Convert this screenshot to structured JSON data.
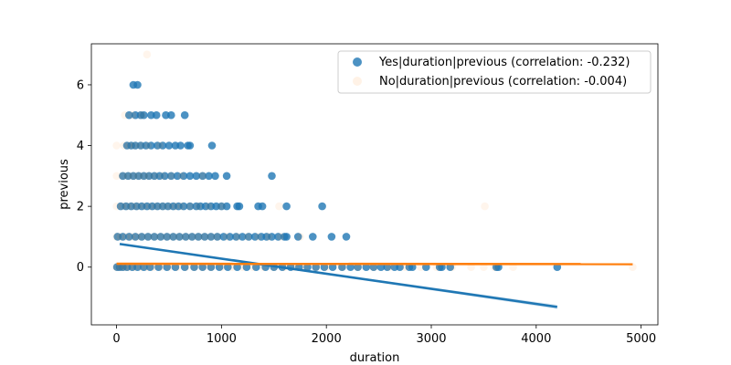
{
  "chart_data": {
    "type": "scatter",
    "title": "",
    "xlabel": "duration",
    "ylabel": "previous",
    "xlim": [
      -240,
      5160
    ],
    "ylim": [
      -1.9,
      7.35
    ],
    "xticks": [
      0,
      1000,
      2000,
      3000,
      4000,
      5000
    ],
    "xtick_labels": [
      "0",
      "1000",
      "2000",
      "3000",
      "4000",
      "5000"
    ],
    "yticks": [
      0,
      2,
      4,
      6
    ],
    "ytick_labels": [
      "0",
      "2",
      "4",
      "6"
    ],
    "grid": false,
    "legend_position": "top-right",
    "series": [
      {
        "name": "Yes|duration|previous (correlation: -0.232)",
        "color": "#1f77b4",
        "opacity": 0.8,
        "points": [
          [
            5,
            0
          ],
          [
            30,
            0
          ],
          [
            60,
            0
          ],
          [
            100,
            0
          ],
          [
            150,
            0
          ],
          [
            200,
            0
          ],
          [
            260,
            0
          ],
          [
            320,
            0
          ],
          [
            400,
            0
          ],
          [
            480,
            0
          ],
          [
            560,
            0
          ],
          [
            650,
            0
          ],
          [
            740,
            0
          ],
          [
            820,
            0
          ],
          [
            900,
            0
          ],
          [
            980,
            0
          ],
          [
            1060,
            0
          ],
          [
            1150,
            0
          ],
          [
            1240,
            0
          ],
          [
            1330,
            0
          ],
          [
            1420,
            0
          ],
          [
            1500,
            0
          ],
          [
            1580,
            0
          ],
          [
            1660,
            0
          ],
          [
            1740,
            0
          ],
          [
            1820,
            0
          ],
          [
            1900,
            0
          ],
          [
            1980,
            0
          ],
          [
            2060,
            0
          ],
          [
            2150,
            0
          ],
          [
            2230,
            0
          ],
          [
            2300,
            0
          ],
          [
            2380,
            0
          ],
          [
            2450,
            0
          ],
          [
            2520,
            0
          ],
          [
            2580,
            0
          ],
          [
            2650,
            0
          ],
          [
            2700,
            0
          ],
          [
            2790,
            0
          ],
          [
            2820,
            0
          ],
          [
            2950,
            0
          ],
          [
            3080,
            0
          ],
          [
            3100,
            0
          ],
          [
            3180,
            0
          ],
          [
            3620,
            0
          ],
          [
            3640,
            0
          ],
          [
            4200,
            0
          ],
          [
            10,
            1
          ],
          [
            60,
            1
          ],
          [
            120,
            1
          ],
          [
            180,
            1
          ],
          [
            240,
            1
          ],
          [
            300,
            1
          ],
          [
            360,
            1
          ],
          [
            420,
            1
          ],
          [
            480,
            1
          ],
          [
            540,
            1
          ],
          [
            600,
            1
          ],
          [
            660,
            1
          ],
          [
            720,
            1
          ],
          [
            780,
            1
          ],
          [
            840,
            1
          ],
          [
            900,
            1
          ],
          [
            960,
            1
          ],
          [
            1020,
            1
          ],
          [
            1080,
            1
          ],
          [
            1140,
            1
          ],
          [
            1200,
            1
          ],
          [
            1260,
            1
          ],
          [
            1320,
            1
          ],
          [
            1380,
            1
          ],
          [
            1430,
            1
          ],
          [
            1480,
            1
          ],
          [
            1540,
            1
          ],
          [
            1600,
            1
          ],
          [
            1620,
            1
          ],
          [
            1730,
            1
          ],
          [
            1870,
            1
          ],
          [
            2050,
            1
          ],
          [
            2190,
            1
          ],
          [
            40,
            2
          ],
          [
            90,
            2
          ],
          [
            140,
            2
          ],
          [
            190,
            2
          ],
          [
            240,
            2
          ],
          [
            290,
            2
          ],
          [
            340,
            2
          ],
          [
            390,
            2
          ],
          [
            440,
            2
          ],
          [
            490,
            2
          ],
          [
            540,
            2
          ],
          [
            590,
            2
          ],
          [
            640,
            2
          ],
          [
            700,
            2
          ],
          [
            760,
            2
          ],
          [
            800,
            2
          ],
          [
            850,
            2
          ],
          [
            900,
            2
          ],
          [
            950,
            2
          ],
          [
            1000,
            2
          ],
          [
            1050,
            2
          ],
          [
            1150,
            2
          ],
          [
            1170,
            2
          ],
          [
            1350,
            2
          ],
          [
            1390,
            2
          ],
          [
            1620,
            2
          ],
          [
            1960,
            2
          ],
          [
            60,
            3
          ],
          [
            110,
            3
          ],
          [
            160,
            3
          ],
          [
            210,
            3
          ],
          [
            260,
            3
          ],
          [
            310,
            3
          ],
          [
            360,
            3
          ],
          [
            410,
            3
          ],
          [
            460,
            3
          ],
          [
            520,
            3
          ],
          [
            580,
            3
          ],
          [
            640,
            3
          ],
          [
            700,
            3
          ],
          [
            760,
            3
          ],
          [
            820,
            3
          ],
          [
            880,
            3
          ],
          [
            940,
            3
          ],
          [
            1050,
            3
          ],
          [
            1480,
            3
          ],
          [
            100,
            4
          ],
          [
            140,
            4
          ],
          [
            180,
            4
          ],
          [
            230,
            4
          ],
          [
            280,
            4
          ],
          [
            330,
            4
          ],
          [
            390,
            4
          ],
          [
            440,
            4
          ],
          [
            500,
            4
          ],
          [
            560,
            4
          ],
          [
            610,
            4
          ],
          [
            680,
            4
          ],
          [
            700,
            4
          ],
          [
            910,
            4
          ],
          [
            120,
            5
          ],
          [
            180,
            5
          ],
          [
            230,
            5
          ],
          [
            260,
            5
          ],
          [
            330,
            5
          ],
          [
            380,
            5
          ],
          [
            470,
            5
          ],
          [
            520,
            5
          ],
          [
            650,
            5
          ],
          [
            160,
            6
          ],
          [
            200,
            6
          ]
        ],
        "regression": {
          "x": [
            30,
            4200
          ],
          "y": [
            0.76,
            -1.31
          ]
        }
      },
      {
        "name": "No|duration|previous (correlation: -0.004)",
        "color": "#ff7f0e",
        "opacity": 0.08,
        "points": [
          [
            0,
            0
          ],
          [
            40,
            0
          ],
          [
            80,
            0
          ],
          [
            120,
            0
          ],
          [
            170,
            0
          ],
          [
            230,
            0
          ],
          [
            290,
            0
          ],
          [
            350,
            0
          ],
          [
            420,
            0
          ],
          [
            500,
            0
          ],
          [
            580,
            0
          ],
          [
            660,
            0
          ],
          [
            740,
            0
          ],
          [
            820,
            0
          ],
          [
            900,
            0
          ],
          [
            1000,
            0
          ],
          [
            1100,
            0
          ],
          [
            1200,
            0
          ],
          [
            1300,
            0
          ],
          [
            1400,
            0
          ],
          [
            1500,
            0
          ],
          [
            1600,
            0
          ],
          [
            1700,
            0
          ],
          [
            1800,
            0
          ],
          [
            1900,
            0
          ],
          [
            2000,
            0
          ],
          [
            2150,
            0
          ],
          [
            2300,
            0
          ],
          [
            2450,
            0
          ],
          [
            2600,
            0
          ],
          [
            2750,
            0
          ],
          [
            2900,
            0
          ],
          [
            3050,
            0
          ],
          [
            3200,
            0
          ],
          [
            3380,
            0
          ],
          [
            3500,
            0
          ],
          [
            3600,
            0
          ],
          [
            3780,
            0
          ],
          [
            4920,
            0
          ],
          [
            0,
            1
          ],
          [
            40,
            1
          ],
          [
            90,
            1
          ],
          [
            140,
            1
          ],
          [
            190,
            1
          ],
          [
            240,
            1
          ],
          [
            300,
            1
          ],
          [
            360,
            1
          ],
          [
            420,
            1
          ],
          [
            480,
            1
          ],
          [
            540,
            1
          ],
          [
            600,
            1
          ],
          [
            660,
            1
          ],
          [
            720,
            1
          ],
          [
            780,
            1
          ],
          [
            840,
            1
          ],
          [
            900,
            1
          ],
          [
            960,
            1
          ],
          [
            1050,
            1
          ],
          [
            1150,
            1
          ],
          [
            1250,
            1
          ],
          [
            1350,
            1
          ],
          [
            1450,
            1
          ],
          [
            1560,
            1
          ],
          [
            1750,
            1
          ],
          [
            0,
            2
          ],
          [
            50,
            2
          ],
          [
            100,
            2
          ],
          [
            150,
            2
          ],
          [
            200,
            2
          ],
          [
            260,
            2
          ],
          [
            320,
            2
          ],
          [
            380,
            2
          ],
          [
            440,
            2
          ],
          [
            500,
            2
          ],
          [
            560,
            2
          ],
          [
            620,
            2
          ],
          [
            700,
            2
          ],
          [
            780,
            2
          ],
          [
            880,
            2
          ],
          [
            1000,
            2
          ],
          [
            1550,
            2
          ],
          [
            3510,
            2
          ],
          [
            0,
            3
          ],
          [
            60,
            3
          ],
          [
            110,
            3
          ],
          [
            160,
            3
          ],
          [
            210,
            3
          ],
          [
            260,
            3
          ],
          [
            310,
            3
          ],
          [
            370,
            3
          ],
          [
            440,
            3
          ],
          [
            520,
            3
          ],
          [
            620,
            3
          ],
          [
            820,
            3
          ],
          [
            0,
            4
          ],
          [
            70,
            4
          ],
          [
            120,
            4
          ],
          [
            170,
            4
          ],
          [
            230,
            4
          ],
          [
            300,
            4
          ],
          [
            410,
            4
          ],
          [
            80,
            5
          ],
          [
            150,
            5
          ],
          [
            240,
            5
          ],
          [
            290,
            7
          ]
        ],
        "regression": {
          "x": [
            0,
            4920
          ],
          "y": [
            0.11,
            0.1
          ]
        }
      }
    ]
  }
}
